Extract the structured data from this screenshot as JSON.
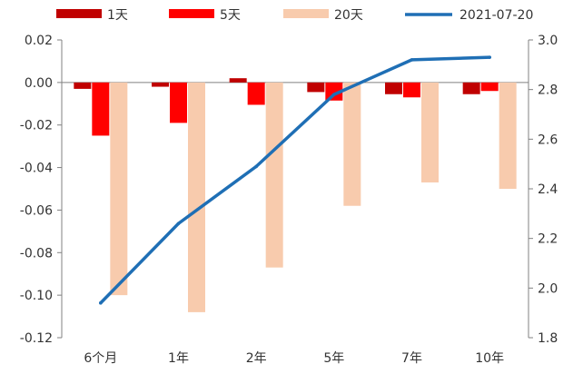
{
  "chart_data": {
    "type": "bar",
    "categories": [
      "6个月",
      "1年",
      "2年",
      "5年",
      "7年",
      "10年"
    ],
    "series": [
      {
        "name": "1天",
        "type": "bar",
        "axis": "left",
        "color": "#C00000",
        "values": [
          -0.003,
          -0.002,
          0.002,
          -0.0045,
          -0.0055,
          -0.0055
        ]
      },
      {
        "name": "5天",
        "type": "bar",
        "axis": "left",
        "color": "#FF0000",
        "values": [
          -0.025,
          -0.019,
          -0.0105,
          -0.0085,
          -0.007,
          -0.004
        ]
      },
      {
        "name": "20天",
        "type": "bar",
        "axis": "left",
        "color": "#F8CBAD",
        "values": [
          -0.1,
          -0.108,
          -0.087,
          -0.058,
          -0.047,
          -0.05
        ]
      },
      {
        "name": "2021-07-20",
        "type": "line",
        "axis": "right",
        "color": "#1F6FB5",
        "values": [
          1.94,
          2.26,
          2.49,
          2.78,
          2.92,
          2.93
        ]
      }
    ],
    "y_left": {
      "min": -0.12,
      "max": 0.02,
      "ticks": [
        "0.02",
        "0.00",
        "-0.02",
        "-0.04",
        "-0.06",
        "-0.08",
        "-0.10",
        "-0.12"
      ]
    },
    "y_right": {
      "min": 1.8,
      "max": 3.0,
      "ticks": [
        "3.0",
        "2.8",
        "2.6",
        "2.4",
        "2.2",
        "2.0",
        "1.8"
      ]
    },
    "legend_position": "top",
    "grid": false
  }
}
